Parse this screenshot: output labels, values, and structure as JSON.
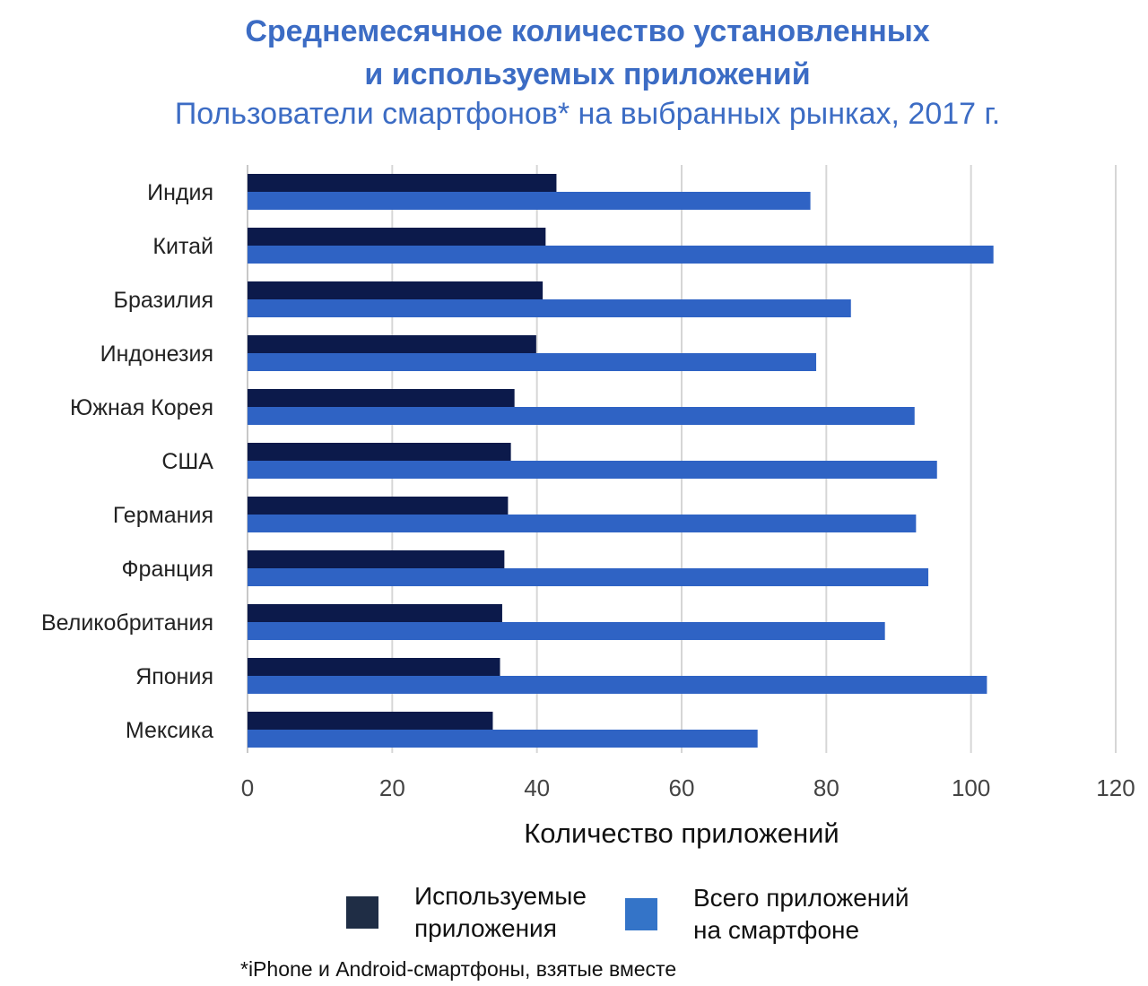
{
  "title_line1": "Среднемесячное количество установленных",
  "title_line2": "и используемых приложений",
  "subtitle": "Пользователи смартфонов* на выбранных рынках, 2017 г.",
  "footnote": "*iPhone и Android-смартфоны, взятые вместе",
  "colors": {
    "used": "#0c1a4b",
    "total": "#2f63c4",
    "title": "#3c6cc4",
    "legend_used": "#1f2d45",
    "legend_total": "#3474c8"
  },
  "legend": {
    "used": "Используемые приложения",
    "total": "Всего приложений на смартфоне"
  },
  "chart_data": {
    "type": "bar",
    "orientation": "horizontal",
    "title": "Среднемесячное количество установленных и используемых приложений",
    "subtitle": "Пользователи смартфонов* на выбранных рынках, 2017 г.",
    "xlabel": "Количество приложений",
    "ylabel": "",
    "xlim": [
      0,
      120
    ],
    "xticks": [
      0,
      20,
      40,
      60,
      80,
      100,
      120
    ],
    "grid": true,
    "legend_position": "bottom",
    "categories": [
      "Индия",
      "Китай",
      "Бразилия",
      "Индонезия",
      "Южная Корея",
      "США",
      "Германия",
      "Франция",
      "Великобритания",
      "Япония",
      "Мексика"
    ],
    "series": [
      {
        "name": "Используемые приложения",
        "values": [
          42.7,
          41.2,
          40.8,
          39.9,
          36.9,
          36.4,
          36.0,
          35.5,
          35.2,
          34.9,
          33.9
        ]
      },
      {
        "name": "Всего приложений на смартфоне",
        "values": [
          77.8,
          103.1,
          83.4,
          78.6,
          92.2,
          95.3,
          92.4,
          94.1,
          88.1,
          102.2,
          70.5
        ]
      }
    ]
  }
}
